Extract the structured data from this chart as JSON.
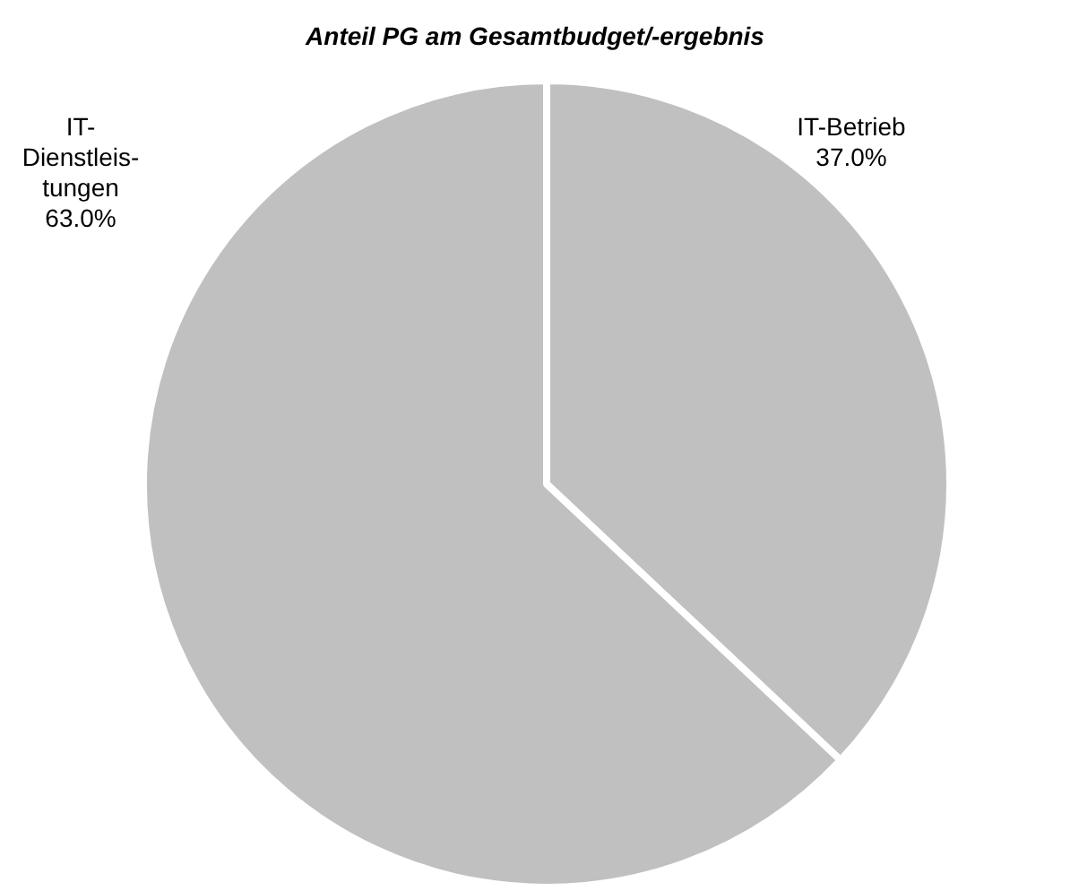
{
  "chart_data": {
    "type": "pie",
    "title": "Anteil PG am Gesamtbudget/-ergebnis",
    "categories": [
      "IT-Betrieb",
      "IT-\nDienstleis-\ntungen"
    ],
    "values": [
      37.0,
      63.0
    ],
    "colors": [
      "#c0c0c0",
      "#c0c0c0"
    ],
    "value_labels": [
      "37.0%",
      "63.0%"
    ],
    "legend": false
  }
}
